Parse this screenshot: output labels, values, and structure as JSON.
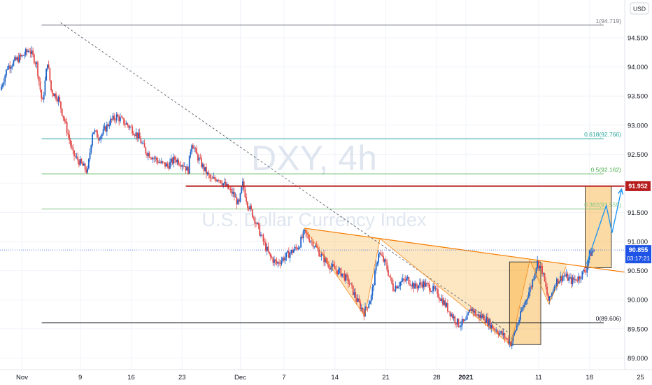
{
  "chart_data": {
    "type": "candlestick",
    "watermark": {
      "symbol": "DXY, 4h",
      "name": "U.S. Dollar Currency Index"
    },
    "currency": "USD",
    "y_axis": {
      "ylim": [
        88.8,
        95.15
      ],
      "ticks": [
        89.0,
        89.5,
        90.0,
        90.5,
        91.0,
        91.5,
        92.0,
        92.5,
        93.0,
        93.5,
        94.0,
        94.5
      ],
      "tick_labels": [
        "89.000",
        "89.500",
        "90.000",
        "90.500",
        "91.000",
        "91.500",
        "92.000",
        "92.500",
        "93.000",
        "93.500",
        "94.000",
        "94.500"
      ]
    },
    "x_axis": {
      "labels": [
        {
          "t": 0,
          "text": "Nov",
          "bold": false
        },
        {
          "t": 8,
          "text": "9",
          "bold": false
        },
        {
          "t": 15,
          "text": "16",
          "bold": false
        },
        {
          "t": 22,
          "text": "23",
          "bold": false
        },
        {
          "t": 30,
          "text": "Dec",
          "bold": false
        },
        {
          "t": 36,
          "text": "7",
          "bold": false
        },
        {
          "t": 43,
          "text": "14",
          "bold": false
        },
        {
          "t": 50,
          "text": "21",
          "bold": false
        },
        {
          "t": 57,
          "text": "28",
          "bold": false
        },
        {
          "t": 61,
          "text": "2021",
          "bold": true
        },
        {
          "t": 71,
          "text": "11",
          "bold": false
        },
        {
          "t": 78,
          "text": "18",
          "bold": false
        },
        {
          "t": 85,
          "text": "25",
          "bold": false
        }
      ]
    },
    "fib_levels": [
      {
        "label": "1(94.719)",
        "value": 94.719,
        "color": "#787b86"
      },
      {
        "label": "0.618(92.766)",
        "value": 92.766,
        "color": "#26a69a"
      },
      {
        "label": "0.5(92.162)",
        "value": 92.162,
        "color": "#4caf50"
      },
      {
        "label": "0.382(91.559)",
        "value": 91.559,
        "color": "#81c784"
      },
      {
        "label": "0(89.606)",
        "value": 89.606,
        "color": "#131722"
      }
    ],
    "resistance": {
      "value": 91.952,
      "t_start": 22.5,
      "color": "#b71c1c"
    },
    "current_price": {
      "value": 90.855,
      "label": "90.855",
      "countdown": "03:17:21",
      "color": "#1e53e5"
    },
    "pattern": {
      "peaks": [
        [
          38.8,
          91.23
        ],
        [
          49.2,
          91.05
        ],
        [
          69.8,
          90.68
        ],
        [
          74.8,
          90.57
        ]
      ],
      "troughs": [
        [
          47.1,
          89.72
        ],
        [
          67.2,
          89.22
        ],
        [
          72.4,
          89.93
        ]
      ],
      "neckline": [
        [
          38.8,
          91.23
        ],
        [
          89.5,
          90.36
        ]
      ],
      "color": "#f57c00",
      "fill": "#f9a825"
    },
    "boxes": [
      {
        "t0": 67.0,
        "t1": 71.3,
        "y0": 89.23,
        "y1": 90.65
      },
      {
        "t0": 77.4,
        "t1": 81.0,
        "y0": 90.55,
        "y1": 91.95
      }
    ],
    "projection": [
      [
        77.6,
        90.62
      ],
      [
        80.3,
        91.62
      ],
      [
        81.1,
        91.15
      ],
      [
        82.4,
        91.9
      ]
    ],
    "projection_color": "#2196f3",
    "dashed_trend": [
      [
        5.3,
        94.76
      ],
      [
        66.7,
        89.45
      ]
    ],
    "series_anchors": [
      [
        -5,
        93.2
      ],
      [
        -3,
        93.6
      ],
      [
        -2,
        94.0
      ],
      [
        -1,
        94.1
      ],
      [
        0,
        94.18
      ],
      [
        1,
        94.3
      ],
      [
        2,
        94.05
      ],
      [
        2.8,
        93.35
      ],
      [
        3.5,
        94.1
      ],
      [
        4,
        93.6
      ],
      [
        5,
        93.45
      ],
      [
        6,
        93.0
      ],
      [
        7,
        92.5
      ],
      [
        8,
        92.35
      ],
      [
        9,
        92.2
      ],
      [
        9.7,
        92.92
      ],
      [
        10.5,
        92.8
      ],
      [
        11,
        92.85
      ],
      [
        12,
        93.05
      ],
      [
        13,
        93.15
      ],
      [
        14,
        93.05
      ],
      [
        15,
        92.95
      ],
      [
        16,
        92.8
      ],
      [
        17,
        92.55
      ],
      [
        18,
        92.45
      ],
      [
        19,
        92.35
      ],
      [
        20,
        92.3
      ],
      [
        21,
        92.42
      ],
      [
        22.3,
        92.32
      ],
      [
        22.8,
        92.2
      ],
      [
        23.3,
        92.72
      ],
      [
        24,
        92.48
      ],
      [
        25,
        92.25
      ],
      [
        26,
        92.05
      ],
      [
        27,
        92.1
      ],
      [
        28,
        91.95
      ],
      [
        29,
        91.82
      ],
      [
        29.8,
        91.62
      ],
      [
        30.3,
        92.0
      ],
      [
        31,
        91.65
      ],
      [
        32,
        91.38
      ],
      [
        33,
        91.05
      ],
      [
        34,
        90.75
      ],
      [
        35,
        90.62
      ],
      [
        36,
        90.72
      ],
      [
        37,
        90.82
      ],
      [
        38,
        90.92
      ],
      [
        38.8,
        91.15
      ],
      [
        40,
        90.98
      ],
      [
        41,
        90.78
      ],
      [
        42,
        90.62
      ],
      [
        43,
        90.52
      ],
      [
        44,
        90.45
      ],
      [
        45,
        90.28
      ],
      [
        46,
        90.0
      ],
      [
        47,
        89.78
      ],
      [
        48,
        90.05
      ],
      [
        49,
        90.82
      ],
      [
        50,
        90.6
      ],
      [
        51,
        90.2
      ],
      [
        52,
        90.3
      ],
      [
        53,
        90.35
      ],
      [
        54,
        90.22
      ],
      [
        55,
        90.28
      ],
      [
        56,
        90.22
      ],
      [
        57,
        90.12
      ],
      [
        58,
        89.95
      ],
      [
        59,
        89.75
      ],
      [
        60,
        89.58
      ],
      [
        61,
        89.62
      ],
      [
        61.7,
        89.86
      ],
      [
        62.5,
        89.73
      ],
      [
        63.5,
        89.7
      ],
      [
        64.5,
        89.55
      ],
      [
        66,
        89.4
      ],
      [
        67.2,
        89.25
      ],
      [
        68,
        89.55
      ],
      [
        69,
        89.92
      ],
      [
        70,
        90.25
      ],
      [
        70.8,
        90.65
      ],
      [
        71.5,
        90.5
      ],
      [
        72.4,
        89.95
      ],
      [
        73.3,
        90.3
      ],
      [
        74.5,
        90.42
      ],
      [
        75.5,
        90.32
      ],
      [
        76.5,
        90.38
      ],
      [
        77.5,
        90.52
      ],
      [
        78,
        90.78
      ],
      [
        78.7,
        90.86
      ]
    ]
  }
}
